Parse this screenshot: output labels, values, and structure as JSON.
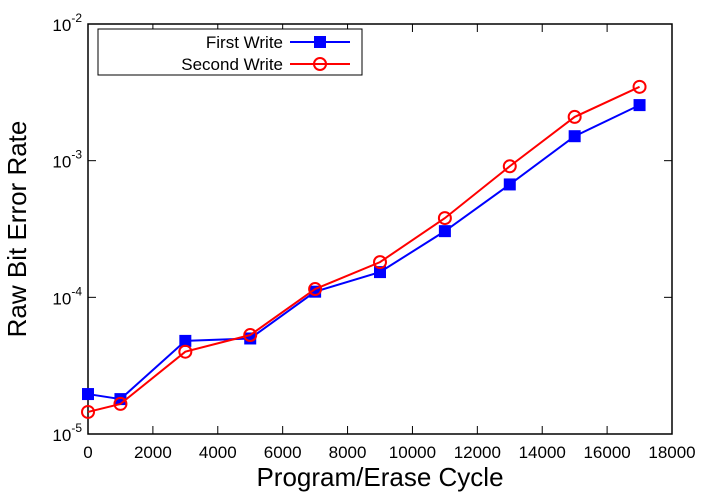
{
  "chart_data": {
    "type": "line",
    "x_label": "Program/Erase Cycle",
    "y_label": "Raw Bit Error Rate",
    "x": [
      0,
      1000,
      3000,
      5000,
      7000,
      9000,
      11000,
      13000,
      15000,
      17000
    ],
    "series": [
      {
        "name": "First Write",
        "color": "#0000ff",
        "marker": "square",
        "values": [
          1.96e-05,
          1.8e-05,
          4.8e-05,
          5e-05,
          0.00011,
          0.000153,
          0.000305,
          0.00067,
          0.00151,
          0.00255
        ]
      },
      {
        "name": "Second Write",
        "color": "#ff0000",
        "marker": "circle",
        "values": [
          1.45e-05,
          1.66e-05,
          4e-05,
          5.3e-05,
          0.000115,
          0.000181,
          0.00038,
          0.00091,
          0.00209,
          0.00347
        ]
      }
    ],
    "xlim": [
      0,
      18000
    ],
    "xticks": [
      0,
      2000,
      4000,
      6000,
      8000,
      10000,
      12000,
      14000,
      16000,
      18000
    ],
    "ylim": [
      1e-05,
      0.01
    ],
    "log_y": true,
    "yticks": [
      {
        "value": 1e-05,
        "label": "10-5"
      },
      {
        "value": 0.0001,
        "label": "10-4"
      },
      {
        "value": 0.001,
        "label": "10-3"
      },
      {
        "value": 0.01,
        "label": "10-2"
      }
    ],
    "legend": "upper left"
  }
}
